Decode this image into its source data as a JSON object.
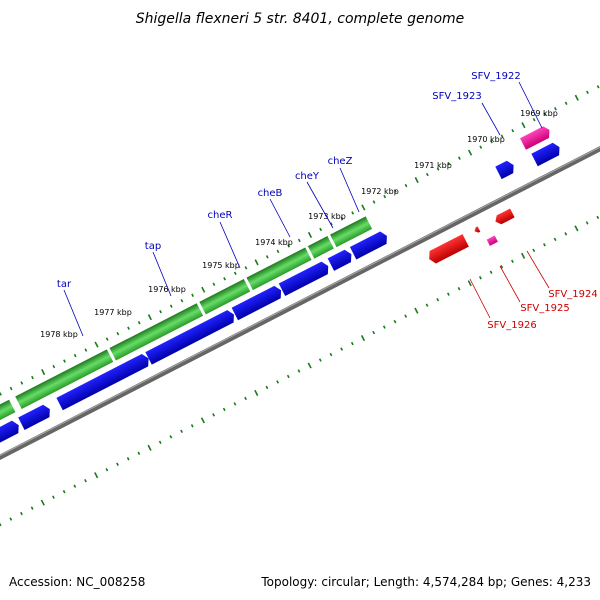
{
  "title": "Shigella flexneri 5 str. 8401, complete genome",
  "footer": {
    "accession": "Accession: NC_008258",
    "topology": "Topology: circular; Length: 4,574,284 bp; Genes: 4,233"
  },
  "colors": {
    "forward_label": "#0000bb",
    "reverse_label": "#cc0000",
    "cds_green": "#2a9a2a",
    "cds_blue": "#0000ee",
    "cds_red": "#ee0000",
    "cds_pink": "#ee1199",
    "backbone": "#777777",
    "ticks": "#1a7a1a"
  },
  "scale_labels": [
    "1969 kbp",
    "1970 kbp",
    "1971 kbp",
    "1972 kbp",
    "1973 kbp",
    "1974 kbp",
    "1975 kbp",
    "1976 kbp",
    "1977 kbp",
    "1978 kbp"
  ],
  "gene_labels": {
    "forward": [
      "SFV_1922",
      "SFV_1923",
      "cheZ",
      "cheY",
      "cheB",
      "cheR",
      "tap",
      "tar"
    ],
    "reverse": [
      "SFV_1924",
      "SFV_1925",
      "SFV_1926"
    ]
  }
}
